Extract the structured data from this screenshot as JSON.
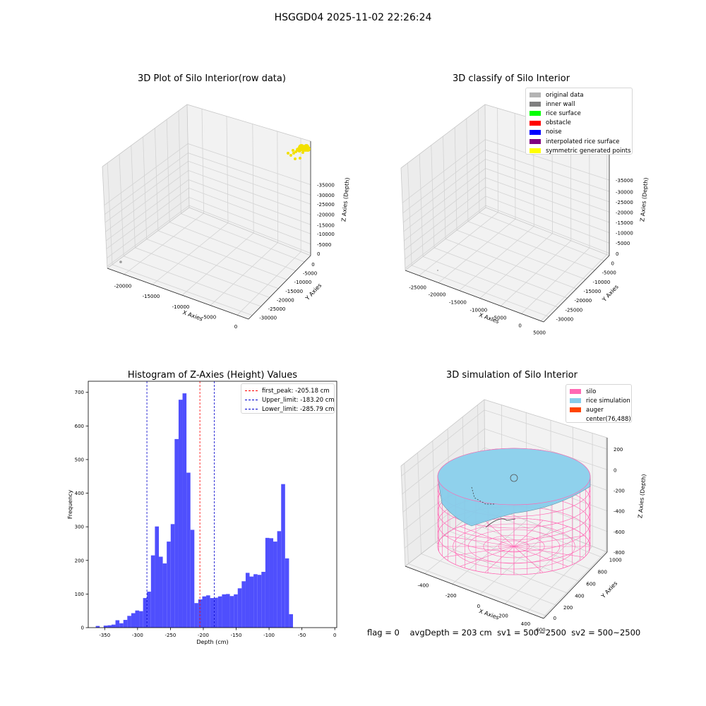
{
  "suptitle": "HSGGD04 2025-11-02 22:26:24",
  "colors": {
    "pane": "#f2f2f2",
    "pane_side": "#ececec",
    "grid": "#d3d3d3",
    "yellow": "#f2e000",
    "hist": "#4f4ffd",
    "peak": "#ff0000",
    "limit": "#0000cc",
    "silo": "#ff69b4",
    "rice": "#87ceeb",
    "auger": "#ff4500"
  },
  "panels": {
    "raw": {
      "title": "3D Plot of Silo Interior(row data)",
      "xlabel": "X Axies",
      "ylabel": "Y Axies",
      "zlabel": "Z Axies (Depth)",
      "xticks": [
        "-20000",
        "-15000",
        "-10000",
        "-5000",
        "0"
      ],
      "yticks": [
        "0",
        "-5000",
        "-10000",
        "-15000",
        "-20000",
        "-25000",
        "-30000"
      ],
      "zticks": [
        "0",
        "-5000",
        "-10000",
        "-15000",
        "-20000",
        "-25000",
        "-30000",
        "-35000"
      ]
    },
    "classify": {
      "title": "3D classify of Silo Interior",
      "xlabel": "X Axies",
      "ylabel": "Y Axies",
      "zlabel": "Z Axies (Depth)",
      "xticks": [
        "-25000",
        "-20000",
        "-15000",
        "-10000",
        "-5000",
        "0",
        "5000"
      ],
      "yticks": [
        "0",
        "-5000",
        "-10000",
        "-15000",
        "-20000",
        "-25000",
        "-30000"
      ],
      "zticks": [
        "0",
        "-5000",
        "-10000",
        "-15000",
        "-20000",
        "-25000",
        "-30000",
        "-35000"
      ],
      "legend": [
        {
          "label": "original data",
          "color": "#b3b3b3"
        },
        {
          "label": "inner wall",
          "color": "#808080"
        },
        {
          "label": "rice surface",
          "color": "#00ff00"
        },
        {
          "label": "obstacle",
          "color": "#ff0000"
        },
        {
          "label": "noise",
          "color": "#0000ff"
        },
        {
          "label": "interpolated rice surface",
          "color": "#800080"
        },
        {
          "label": "symmetric generated points",
          "color": "#ffff00"
        }
      ]
    },
    "simulation": {
      "title": "3D simulation of Silo Interior",
      "xlabel": "X Axies",
      "ylabel": "Y Axies",
      "zlabel": "Z Axies (Depth)",
      "xticks": [
        "-400",
        "-200",
        "0",
        "200",
        "400",
        "600"
      ],
      "yticks": [
        "0",
        "200",
        "400",
        "600",
        "800",
        "1000"
      ],
      "zticks": [
        "200",
        "0",
        "-200",
        "-400",
        "-600",
        "-800"
      ],
      "legend": [
        {
          "label": "silo",
          "color": "#ff69b4"
        },
        {
          "label": "rice simulation",
          "color": "#87ceeb"
        },
        {
          "label": "auger",
          "color": "#ff4500"
        },
        {
          "label": "center(76,488)",
          "color": ""
        }
      ]
    }
  },
  "status": {
    "flag": "flag = 0",
    "avg": "avgDepth = 203 cm",
    "sv1": "sv1 = 500~2500",
    "sv2": "sv2 = 500~2500"
  },
  "chart_data": {
    "type": "bar",
    "title": "Histogram of Z-Axies (Height) Values",
    "xlabel": "Depth (cm)",
    "ylabel": "Frequency",
    "xlim": [
      -375,
      3
    ],
    "ylim": [
      0,
      733
    ],
    "xticks": [
      -350,
      -300,
      -250,
      -200,
      -150,
      -100,
      -50,
      0
    ],
    "yticks": [
      0,
      100,
      200,
      300,
      400,
      500,
      600,
      700
    ],
    "bin_edges_start": -363.6,
    "bin_width": 6.0,
    "values": [
      5,
      0,
      6,
      7,
      9,
      22,
      13,
      23,
      35,
      43,
      51,
      49,
      88,
      107,
      215,
      301,
      211,
      191,
      256,
      308,
      561,
      678,
      697,
      461,
      291,
      73,
      84,
      93,
      96,
      88,
      89,
      93,
      99,
      100,
      94,
      99,
      117,
      138,
      163,
      152,
      159,
      157,
      166,
      267,
      266,
      256,
      287,
      427,
      206,
      40
    ],
    "vlines": [
      {
        "label": "first_peak: -205.18 cm",
        "x": -205.18,
        "color": "#ff0000"
      },
      {
        "label": "Upper_limit: -183.20 cm",
        "x": -183.2,
        "color": "#0000cc"
      },
      {
        "label": "Lower_limit: -285.79 cm",
        "x": -285.79,
        "color": "#0000cc"
      }
    ],
    "grid": false,
    "legend_loc": "top-right"
  }
}
